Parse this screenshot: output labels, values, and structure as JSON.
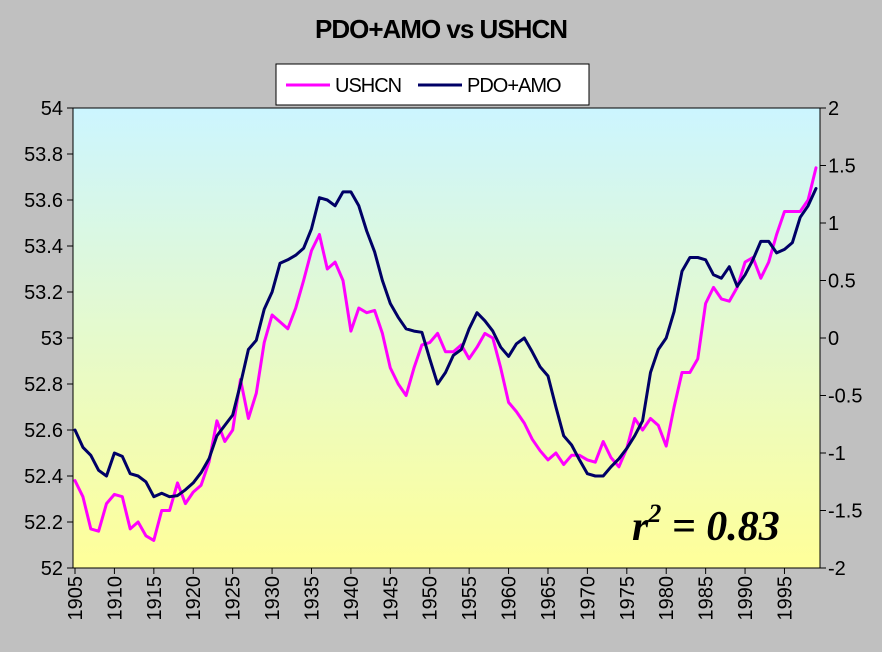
{
  "chart_data": {
    "type": "line",
    "title": "PDO+AMO vs USHCN",
    "xlabel": "",
    "ylabel": "",
    "y2label": "",
    "xlim": [
      1905,
      1999
    ],
    "ylim": [
      52,
      54
    ],
    "y2lim": [
      -2,
      2
    ],
    "y_ticks": [
      "52",
      "52.2",
      "52.4",
      "52.6",
      "52.8",
      "53",
      "53.2",
      "53.4",
      "53.6",
      "53.8",
      "54"
    ],
    "y2_ticks": [
      "-2",
      "-1.5",
      "-1",
      "-0.5",
      "0",
      "0.5",
      "1",
      "1.5",
      "2"
    ],
    "x_ticks": [
      "1905",
      "1910",
      "1915",
      "1920",
      "1925",
      "1930",
      "1935",
      "1940",
      "1945",
      "1950",
      "1955",
      "1960",
      "1965",
      "1970",
      "1975",
      "1980",
      "1985",
      "1990",
      "1995"
    ],
    "grid": false,
    "legend": {
      "placement": "top-center",
      "entries": [
        "USHCN",
        "PDO+AMO"
      ]
    },
    "annotation": {
      "base": "r",
      "superscript": "2",
      "text": " = 0.83"
    },
    "colors": {
      "ushcn": "#FF00FF",
      "pdo_amo": "#000066",
      "plot_top": "#CCF5FF",
      "plot_bottom": "#FFFF99",
      "background": "#C0C0C0"
    },
    "series": [
      {
        "name": "USHCN",
        "axis": "left",
        "x": [
          1905,
          1906,
          1907,
          1908,
          1909,
          1910,
          1911,
          1912,
          1913,
          1914,
          1915,
          1916,
          1917,
          1918,
          1919,
          1920,
          1921,
          1922,
          1923,
          1924,
          1925,
          1926,
          1927,
          1928,
          1929,
          1930,
          1931,
          1932,
          1933,
          1934,
          1935,
          1936,
          1937,
          1938,
          1939,
          1940,
          1941,
          1942,
          1943,
          1944,
          1945,
          1946,
          1947,
          1948,
          1949,
          1950,
          1951,
          1952,
          1953,
          1954,
          1955,
          1956,
          1957,
          1958,
          1959,
          1960,
          1961,
          1962,
          1963,
          1964,
          1965,
          1966,
          1967,
          1968,
          1969,
          1970,
          1971,
          1972,
          1973,
          1974,
          1975,
          1976,
          1977,
          1978,
          1979,
          1980,
          1981,
          1982,
          1983,
          1984,
          1985,
          1986,
          1987,
          1988,
          1989,
          1990,
          1991,
          1992,
          1993,
          1994,
          1995,
          1996,
          1997,
          1998,
          1999
        ],
        "values": [
          52.38,
          52.31,
          52.17,
          52.16,
          52.28,
          52.32,
          52.31,
          52.17,
          52.2,
          52.14,
          52.12,
          52.25,
          52.25,
          52.37,
          52.28,
          52.33,
          52.36,
          52.46,
          52.64,
          52.55,
          52.6,
          52.82,
          52.65,
          52.76,
          52.98,
          53.1,
          53.07,
          53.04,
          53.13,
          53.25,
          53.38,
          53.45,
          53.3,
          53.33,
          53.25,
          53.03,
          53.13,
          53.11,
          53.12,
          53.02,
          52.87,
          52.8,
          52.75,
          52.87,
          52.97,
          52.98,
          53.02,
          52.94,
          52.94,
          52.97,
          52.91,
          52.96,
          53.02,
          53.0,
          52.87,
          52.72,
          52.68,
          52.63,
          52.56,
          52.51,
          52.47,
          52.5,
          52.45,
          52.49,
          52.49,
          52.47,
          52.46,
          52.55,
          52.48,
          52.44,
          52.52,
          52.65,
          52.6,
          52.65,
          52.62,
          52.53,
          52.7,
          52.85,
          52.85,
          52.91,
          53.15,
          53.22,
          53.17,
          53.16,
          53.22,
          53.33,
          53.35,
          53.26,
          53.33,
          53.45,
          53.55,
          53.55,
          53.55,
          53.6,
          53.74
        ]
      },
      {
        "name": "PDO+AMO",
        "axis": "right",
        "x": [
          1905,
          1906,
          1907,
          1908,
          1909,
          1910,
          1911,
          1912,
          1913,
          1914,
          1915,
          1916,
          1917,
          1918,
          1919,
          1920,
          1921,
          1922,
          1923,
          1924,
          1925,
          1926,
          1927,
          1928,
          1929,
          1930,
          1931,
          1932,
          1933,
          1934,
          1935,
          1936,
          1937,
          1938,
          1939,
          1940,
          1941,
          1942,
          1943,
          1944,
          1945,
          1946,
          1947,
          1948,
          1949,
          1950,
          1951,
          1952,
          1953,
          1954,
          1955,
          1956,
          1957,
          1958,
          1959,
          1960,
          1961,
          1962,
          1963,
          1964,
          1965,
          1966,
          1967,
          1968,
          1969,
          1970,
          1971,
          1972,
          1973,
          1974,
          1975,
          1976,
          1977,
          1978,
          1979,
          1980,
          1981,
          1982,
          1983,
          1984,
          1985,
          1986,
          1987,
          1988,
          1989,
          1990,
          1991,
          1992,
          1993,
          1994,
          1995,
          1996,
          1997,
          1998,
          1999
        ],
        "values": [
          -0.8,
          -0.95,
          -1.02,
          -1.15,
          -1.2,
          -1.0,
          -1.03,
          -1.18,
          -1.2,
          -1.25,
          -1.38,
          -1.35,
          -1.38,
          -1.37,
          -1.32,
          -1.26,
          -1.17,
          -1.05,
          -0.85,
          -0.76,
          -0.67,
          -0.4,
          -0.1,
          -0.02,
          0.25,
          0.4,
          0.65,
          0.68,
          0.72,
          0.78,
          0.95,
          1.22,
          1.2,
          1.15,
          1.27,
          1.27,
          1.15,
          0.93,
          0.75,
          0.5,
          0.3,
          0.18,
          0.08,
          0.06,
          0.05,
          -0.18,
          -0.4,
          -0.3,
          -0.15,
          -0.1,
          0.08,
          0.22,
          0.15,
          0.06,
          -0.08,
          -0.16,
          -0.05,
          0.0,
          -0.12,
          -0.25,
          -0.33,
          -0.6,
          -0.85,
          -0.93,
          -1.06,
          -1.18,
          -1.2,
          -1.2,
          -1.12,
          -1.05,
          -0.96,
          -0.85,
          -0.72,
          -0.3,
          -0.1,
          0.0,
          0.23,
          0.58,
          0.7,
          0.7,
          0.68,
          0.55,
          0.52,
          0.62,
          0.45,
          0.55,
          0.68,
          0.84,
          0.84,
          0.74,
          0.77,
          0.83,
          1.05,
          1.15,
          1.3
        ]
      }
    ]
  }
}
